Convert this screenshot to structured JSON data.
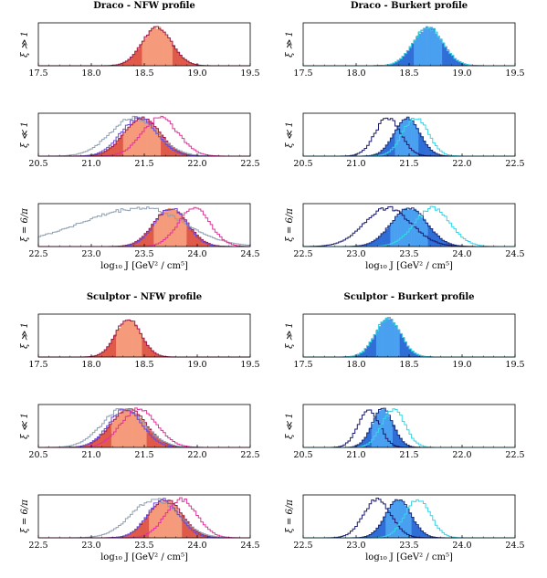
{
  "figure": {
    "x_axis_label": "log₁₀ J [GeV² / cm⁵]"
  },
  "colors": {
    "nfw_fill_dark": "#e05a4a",
    "nfw_fill_light": "#f59a7a",
    "nfw_outline": "#9b1c4a",
    "nfw_magenta": "#e0349a",
    "nfw_violet": "#6a4bd6",
    "nfw_gray": "#8fa0b0",
    "burkert_fill_dark": "#2f6ed6",
    "burkert_fill_light": "#4aa0f0",
    "burkert_outline": "#1b2f7a",
    "burkert_navy": "#1a1a6e",
    "burkert_cyan": "#35d6e8"
  },
  "chart_data": [
    {
      "type": "area",
      "title": "Draco - NFW profile",
      "profile": "nfw",
      "rows": [
        {
          "ylabel": "ξ ≫ 1",
          "xlim": [
            17.5,
            19.5
          ],
          "xticks": [
            "17.5",
            "18.0",
            "18.5",
            "19.0",
            "19.5"
          ],
          "filled": {
            "mean": 18.62,
            "sd": 0.14
          },
          "curves": []
        },
        {
          "ylabel": "ξ ≪ 1",
          "xlim": [
            20.5,
            22.5
          ],
          "xticks": [
            "20.5",
            "21.0",
            "21.5",
            "22.0",
            "22.5"
          ],
          "filled": {
            "mean": 21.48,
            "sd": 0.17
          },
          "curves": [
            {
              "color": "nfw_gray",
              "mean": 21.4,
              "sd": 0.22
            },
            {
              "color": "nfw_violet",
              "mean": 21.45,
              "sd": 0.17
            },
            {
              "color": "nfw_magenta",
              "mean": 21.65,
              "sd": 0.17
            }
          ]
        },
        {
          "ylabel": "ξ = 6/π",
          "xlim": [
            22.5,
            24.5
          ],
          "xticks": [
            "22.5",
            "23.0",
            "23.5",
            "24.0",
            "24.5"
          ],
          "filled": {
            "mean": 23.75,
            "sd": 0.16
          },
          "curves": [
            {
              "color": "nfw_gray",
              "mean": 23.5,
              "sd": 0.38,
              "skew": -0.6
            },
            {
              "color": "nfw_violet",
              "mean": 23.75,
              "sd": 0.15
            },
            {
              "color": "nfw_magenta",
              "mean": 23.97,
              "sd": 0.15
            }
          ]
        }
      ]
    },
    {
      "type": "area",
      "title": "Draco - Burkert profile",
      "profile": "burkert",
      "rows": [
        {
          "ylabel": "ξ ≫ 1",
          "xlim": [
            17.5,
            19.5
          ],
          "xticks": [
            "17.5",
            "18.0",
            "18.5",
            "19.0",
            "19.5"
          ],
          "filled": {
            "mean": 18.68,
            "sd": 0.14
          },
          "curves": [
            {
              "color": "burkert_cyan",
              "mean": 18.68,
              "sd": 0.14
            }
          ]
        },
        {
          "ylabel": "ξ ≪ 1",
          "xlim": [
            20.5,
            22.5
          ],
          "xticks": [
            "20.5",
            "21.0",
            "21.5",
            "22.0",
            "22.5"
          ],
          "filled": {
            "mean": 21.48,
            "sd": 0.12
          },
          "curves": [
            {
              "color": "burkert_navy",
              "mean": 21.3,
              "sd": 0.12
            },
            {
              "color": "burkert_cyan",
              "mean": 21.56,
              "sd": 0.12
            }
          ]
        },
        {
          "ylabel": "ξ = 6/π",
          "xlim": [
            22.5,
            24.5
          ],
          "xticks": [
            "22.5",
            "23.0",
            "23.5",
            "24.0",
            "24.5"
          ],
          "filled": {
            "mean": 23.5,
            "sd": 0.17
          },
          "curves": [
            {
              "color": "burkert_navy",
              "mean": 23.3,
              "sd": 0.22
            },
            {
              "color": "burkert_cyan",
              "mean": 23.72,
              "sd": 0.17
            }
          ]
        }
      ]
    },
    {
      "type": "area",
      "title": "Sculptor - NFW profile",
      "profile": "nfw",
      "rows": [
        {
          "ylabel": "ξ ≫ 1",
          "xlim": [
            17.5,
            19.5
          ],
          "xticks": [
            "17.5",
            "18.0",
            "18.5",
            "19.0",
            "19.5"
          ],
          "filled": {
            "mean": 18.35,
            "sd": 0.12
          },
          "curves": []
        },
        {
          "ylabel": "ξ ≪ 1",
          "xlim": [
            20.5,
            22.5
          ],
          "xticks": [
            "20.5",
            "21.0",
            "21.5",
            "22.0",
            "22.5"
          ],
          "filled": {
            "mean": 21.35,
            "sd": 0.17
          },
          "curves": [
            {
              "color": "nfw_gray",
              "mean": 21.3,
              "sd": 0.2
            },
            {
              "color": "nfw_violet",
              "mean": 21.32,
              "sd": 0.16
            },
            {
              "color": "nfw_magenta",
              "mean": 21.45,
              "sd": 0.17
            }
          ]
        },
        {
          "ylabel": "ξ = 6/π",
          "xlim": [
            22.5,
            24.5
          ],
          "xticks": [
            "22.5",
            "23.0",
            "23.5",
            "24.0",
            "24.5"
          ],
          "filled": {
            "mean": 23.7,
            "sd": 0.16
          },
          "curves": [
            {
              "color": "nfw_gray",
              "mean": 23.6,
              "sd": 0.22
            },
            {
              "color": "nfw_violet",
              "mean": 23.68,
              "sd": 0.15
            },
            {
              "color": "nfw_magenta",
              "mean": 23.85,
              "sd": 0.15
            }
          ]
        }
      ]
    },
    {
      "type": "area",
      "title": "Sculptor - Burkert profile",
      "profile": "burkert",
      "rows": [
        {
          "ylabel": "ξ ≫ 1",
          "xlim": [
            17.5,
            19.5
          ],
          "xticks": [
            "17.5",
            "18.0",
            "18.5",
            "19.0",
            "19.5"
          ],
          "filled": {
            "mean": 18.3,
            "sd": 0.12
          },
          "curves": [
            {
              "color": "burkert_cyan",
              "mean": 18.3,
              "sd": 0.12
            }
          ]
        },
        {
          "ylabel": "ξ ≪ 1",
          "xlim": [
            20.5,
            22.5
          ],
          "xticks": [
            "20.5",
            "21.0",
            "21.5",
            "22.0",
            "22.5"
          ],
          "filled": {
            "mean": 21.25,
            "sd": 0.1
          },
          "curves": [
            {
              "color": "burkert_navy",
              "mean": 21.12,
              "sd": 0.1
            },
            {
              "color": "burkert_cyan",
              "mean": 21.35,
              "sd": 0.11
            }
          ]
        },
        {
          "ylabel": "ξ = 6/π",
          "xlim": [
            22.5,
            24.5
          ],
          "xticks": [
            "22.5",
            "23.0",
            "23.5",
            "24.0",
            "24.5"
          ],
          "filled": {
            "mean": 23.4,
            "sd": 0.12
          },
          "curves": [
            {
              "color": "burkert_navy",
              "mean": 23.2,
              "sd": 0.13
            },
            {
              "color": "burkert_cyan",
              "mean": 23.58,
              "sd": 0.12
            }
          ]
        }
      ]
    }
  ]
}
